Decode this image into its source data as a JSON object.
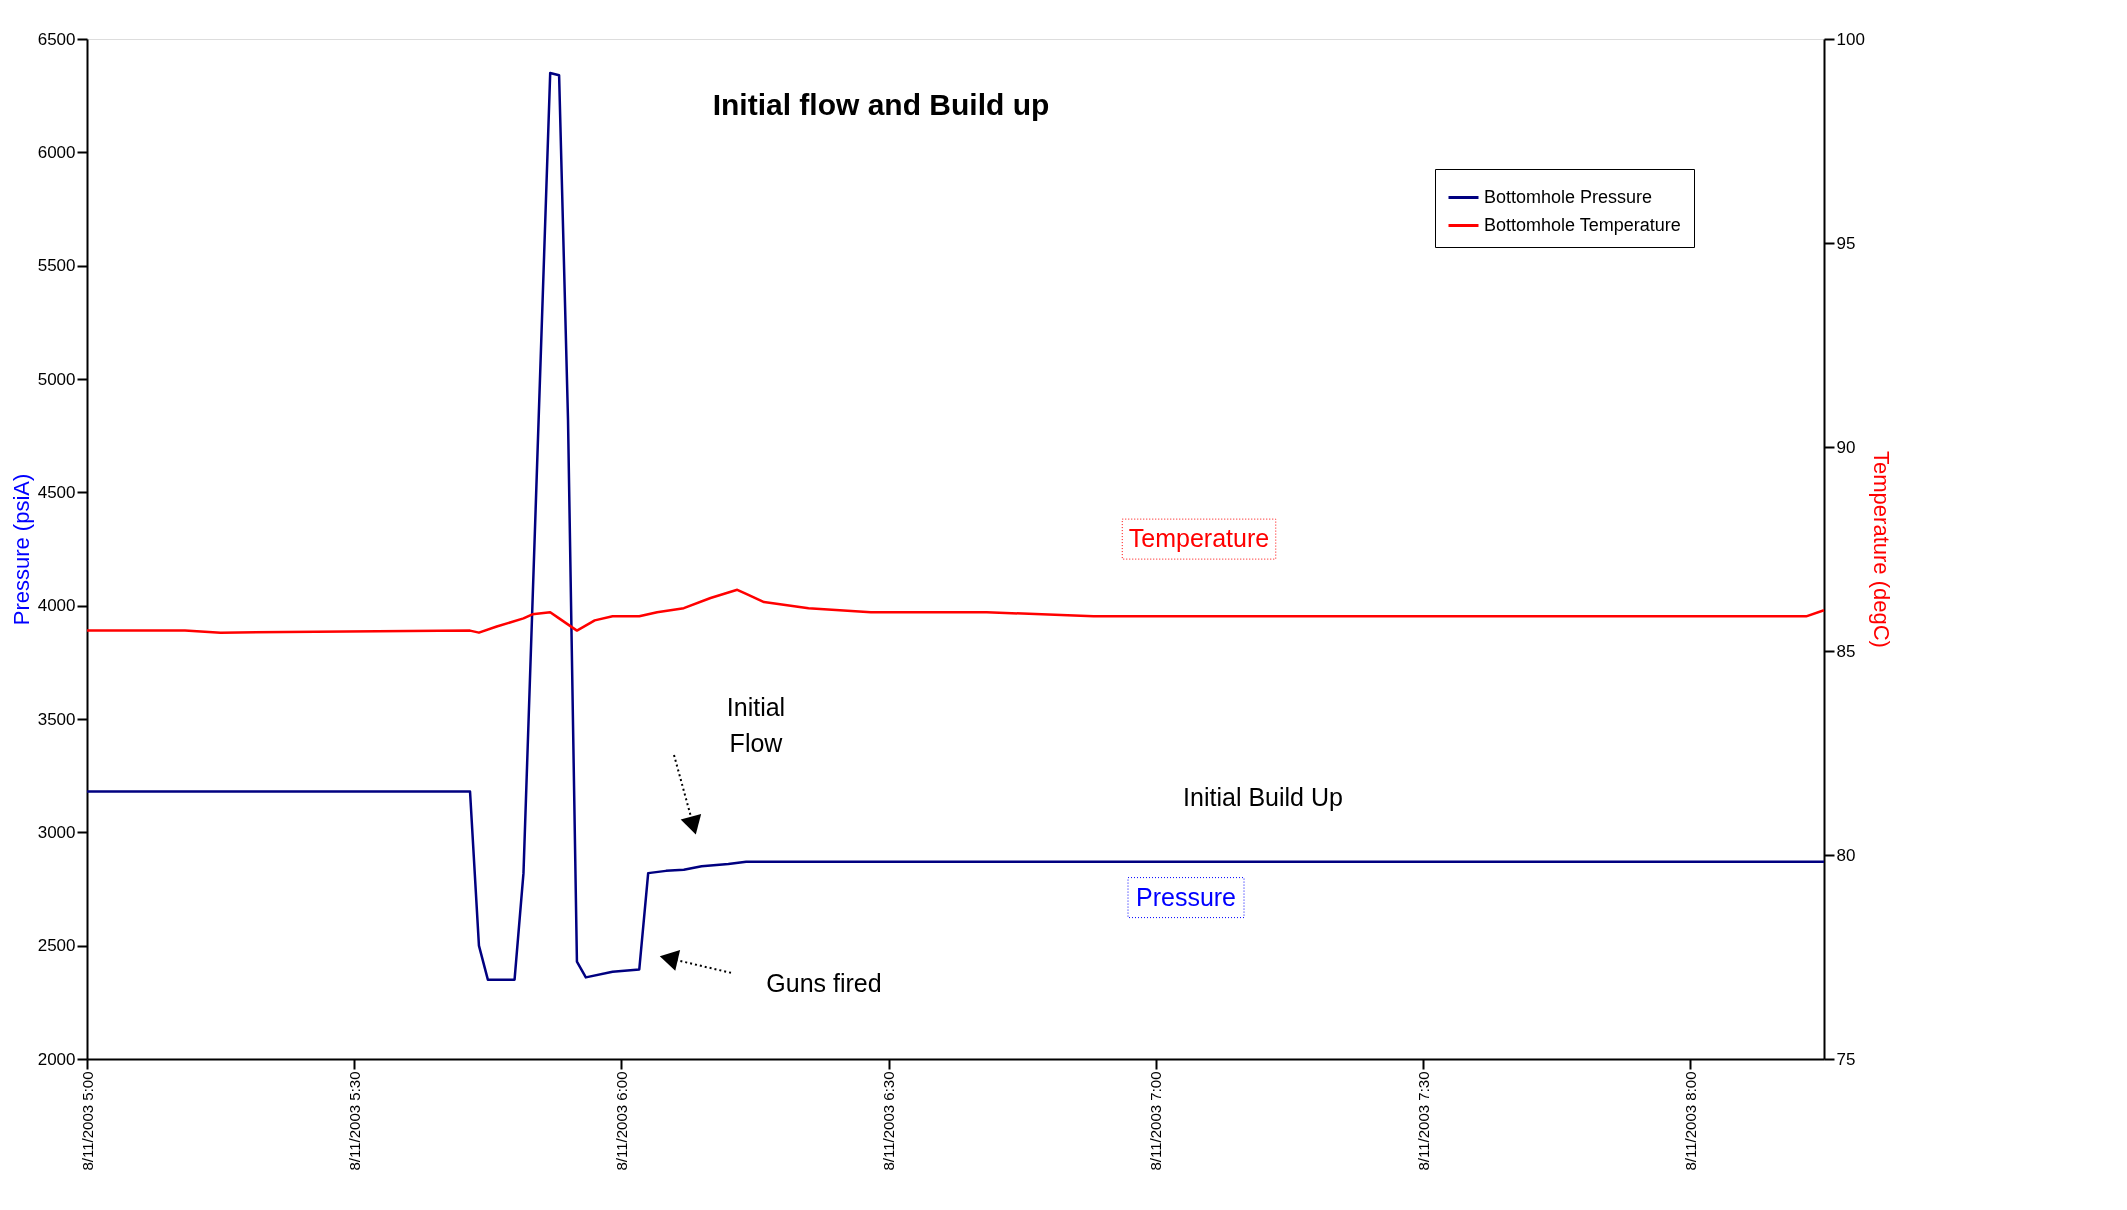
{
  "chart_data": {
    "type": "line",
    "title": "Initial flow and Build up",
    "ylabel": "Pressure (psiA)",
    "y2label": "Temperature (degC)",
    "xlim": [
      "2003-08-11T05:00",
      "2003-08-11T08:15"
    ],
    "xticks": [
      {
        "value": "2003-08-11T05:00",
        "label": "8/11/2003 5:00"
      },
      {
        "value": "2003-08-11T05:30",
        "label": "8/11/2003 5:30"
      },
      {
        "value": "2003-08-11T06:00",
        "label": "8/11/2003 6:00"
      },
      {
        "value": "2003-08-11T06:30",
        "label": "8/11/2003 6:30"
      },
      {
        "value": "2003-08-11T07:00",
        "label": "8/11/2003 7:00"
      },
      {
        "value": "2003-08-11T07:30",
        "label": "8/11/2003 7:30"
      },
      {
        "value": "2003-08-11T08:00",
        "label": "8/11/2003 8:00"
      }
    ],
    "ylim": [
      2000,
      6500
    ],
    "yticks": [
      2000,
      2500,
      3000,
      3500,
      4000,
      4500,
      5000,
      5500,
      6000,
      6500
    ],
    "y2lim": [
      75,
      100
    ],
    "y2ticks": [
      75,
      80,
      85,
      90,
      95,
      100
    ],
    "grid": false,
    "legend": "top right",
    "line_style": "solid",
    "series": [
      {
        "name": "Bottomhole Pressure",
        "color": "#000080",
        "x": [
          "2003-08-11T05:00",
          "2003-08-11T05:43",
          "2003-08-11T05:44",
          "2003-08-11T05:45",
          "2003-08-11T05:48",
          "2003-08-11T05:49",
          "2003-08-11T05:52",
          "2003-08-11T05:53",
          "2003-08-11T05:54",
          "2003-08-11T05:55",
          "2003-08-11T05:56",
          "2003-08-11T05:59",
          "2003-08-11T06:02",
          "2003-08-11T06:03",
          "2003-08-11T06:05",
          "2003-08-11T06:07",
          "2003-08-11T06:09",
          "2003-08-11T06:12",
          "2003-08-11T06:14",
          "2003-08-11T08:15"
        ],
        "values": [
          3180,
          3180,
          2500,
          2350,
          2350,
          2820,
          6350,
          6340,
          4820,
          2430,
          2360,
          2385,
          2395,
          2820,
          2830,
          2835,
          2850,
          2860,
          2870,
          2870
        ]
      },
      {
        "name": "Bottomhole Temperature",
        "color": "#ff0000",
        "axis": "y2",
        "x": [
          "2003-08-11T05:00",
          "2003-08-11T05:11",
          "2003-08-11T05:15",
          "2003-08-11T05:43",
          "2003-08-11T05:44",
          "2003-08-11T05:46",
          "2003-08-11T05:49",
          "2003-08-11T05:50",
          "2003-08-11T05:52",
          "2003-08-11T05:53",
          "2003-08-11T05:55",
          "2003-08-11T05:57",
          "2003-08-11T05:59",
          "2003-08-11T06:02",
          "2003-08-11T06:04",
          "2003-08-11T06:07",
          "2003-08-11T06:10",
          "2003-08-11T06:13",
          "2003-08-11T06:14",
          "2003-08-11T06:16",
          "2003-08-11T06:21",
          "2003-08-11T06:28",
          "2003-08-11T06:41",
          "2003-08-11T06:53",
          "2003-08-11T07:42",
          "2003-08-11T08:13",
          "2003-08-11T08:15"
        ],
        "values": [
          85.5,
          85.5,
          85.45,
          85.5,
          85.45,
          85.6,
          85.8,
          85.9,
          85.95,
          85.8,
          85.5,
          85.75,
          85.85,
          85.85,
          85.95,
          86.05,
          86.3,
          86.5,
          86.4,
          86.2,
          86.05,
          85.95,
          85.95,
          85.85,
          85.85,
          85.85,
          86.0
        ]
      }
    ],
    "annotations": [
      "Initial\nFlow",
      "Guns fired",
      "Initial Build Up",
      "Temperature",
      "Pressure"
    ]
  }
}
